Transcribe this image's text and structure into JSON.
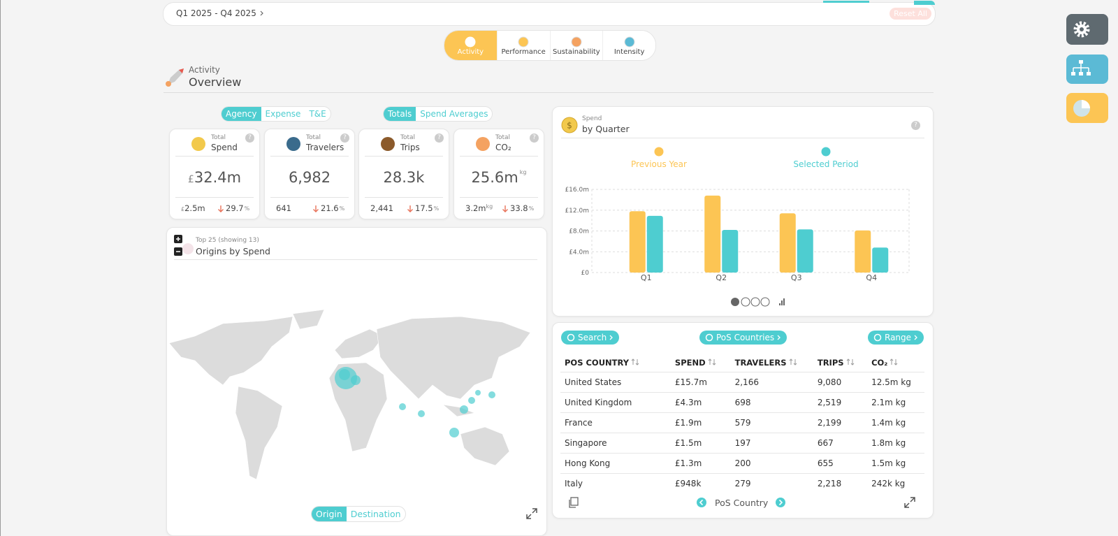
{
  "filter_bar": {
    "date_range": "Q1 2025 - Q4 2025",
    "reset": "Reset All"
  },
  "tabs": [
    "Activity",
    "Performance",
    "Sustainability",
    "Intensity"
  ],
  "section": {
    "label": "Activity",
    "title": "Overview"
  },
  "source_toggle": [
    "Agency",
    "Expense",
    "T&E"
  ],
  "mode_toggle": [
    "Totals",
    "Spend Averages"
  ],
  "help_icon": "?",
  "kpis": [
    {
      "label": "Total",
      "title": "Spend",
      "prefix": "£",
      "value": "32.4m",
      "sub_prefix": "£",
      "sub_value": "2.5m",
      "change": "29.7",
      "change_unit": "%"
    },
    {
      "label": "Total",
      "title": "Travelers",
      "value": "6,982",
      "sub_value": "641",
      "change": "21.6",
      "change_unit": "%"
    },
    {
      "label": "Total",
      "title": "Trips",
      "value": "28.3k",
      "sub_value": "2,441",
      "change": "17.5",
      "change_unit": "%"
    },
    {
      "label": "Total",
      "title": "CO₂",
      "value": "25.6m",
      "unit": "kg",
      "sub_value": "3.2m",
      "sub_unit": "kg",
      "change": "33.8",
      "change_unit": "%"
    }
  ],
  "map": {
    "subtitle": "Top 25 (showing 13)",
    "title": "Origins by Spend",
    "toggle": [
      "Origin",
      "Destination"
    ]
  },
  "chart_data": {
    "type": "bar",
    "subtitle": "Spend",
    "title": "by Quarter",
    "categories": [
      "Q1",
      "Q2",
      "Q3",
      "Q4"
    ],
    "series": [
      {
        "name": "Previous Year",
        "color": "#fcc554",
        "values": [
          11.8,
          14.8,
          11.4,
          8.1
        ]
      },
      {
        "name": "Selected Period",
        "color": "#4ecdd0",
        "values": [
          10.9,
          8.2,
          8.3,
          4.8
        ]
      }
    ],
    "ylim": [
      0,
      16
    ],
    "yticks": [
      {
        "value": 0,
        "label": "£0"
      },
      {
        "value": 4,
        "label": "£4.0m"
      },
      {
        "value": 8,
        "label": "£8.0m"
      },
      {
        "value": 12,
        "label": "£12.0m"
      },
      {
        "value": 16,
        "label": "£16.0m"
      }
    ],
    "grid": true
  },
  "table": {
    "buttons": [
      "Search",
      "PoS Countries",
      "Range"
    ],
    "columns": [
      "POS COUNTRY",
      "SPEND",
      "TRAVELERS",
      "TRIPS",
      "CO₂"
    ],
    "rows": [
      [
        "United States",
        "£15.7m",
        "2,166",
        "9,080",
        "12.5m kg"
      ],
      [
        "United Kingdom",
        "£4.3m",
        "698",
        "2,519",
        "2.1m kg"
      ],
      [
        "France",
        "£1.9m",
        "579",
        "2,199",
        "1.4m kg"
      ],
      [
        "Singapore",
        "£1.5m",
        "197",
        "667",
        "1.8m kg"
      ],
      [
        "Hong Kong",
        "£1.3m",
        "200",
        "655",
        "1.5m kg"
      ],
      [
        "Italy",
        "£948k",
        "279",
        "2,218",
        "242k kg"
      ]
    ],
    "footer": "PoS Country"
  }
}
